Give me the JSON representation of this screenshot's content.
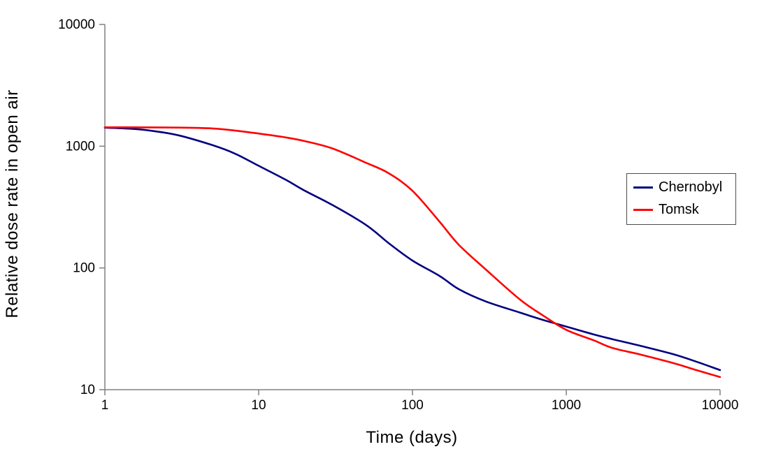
{
  "chart_data": {
    "type": "line",
    "title": "",
    "xlabel": "Time (days)",
    "ylabel": "Relative dose rate in open air",
    "x_scale": "log",
    "y_scale": "log",
    "xlim": [
      1,
      10000
    ],
    "ylim": [
      10,
      10000
    ],
    "x_ticks": [
      1,
      10,
      100,
      1000,
      10000
    ],
    "y_ticks": [
      10,
      100,
      1000,
      10000
    ],
    "grid": false,
    "legend_position": "right-inside",
    "series": [
      {
        "name": "Chernobyl",
        "color": "#000080",
        "points": [
          [
            1,
            1420
          ],
          [
            1.5,
            1390
          ],
          [
            2,
            1340
          ],
          [
            3,
            1230
          ],
          [
            5,
            1020
          ],
          [
            7,
            870
          ],
          [
            10,
            690
          ],
          [
            15,
            530
          ],
          [
            20,
            430
          ],
          [
            30,
            330
          ],
          [
            50,
            225
          ],
          [
            70,
            160
          ],
          [
            100,
            115
          ],
          [
            150,
            86
          ],
          [
            200,
            67
          ],
          [
            300,
            53
          ],
          [
            500,
            43
          ],
          [
            700,
            37.5
          ],
          [
            1000,
            33
          ],
          [
            1500,
            28.5
          ],
          [
            2000,
            26
          ],
          [
            3000,
            23
          ],
          [
            5000,
            19.5
          ],
          [
            7000,
            17
          ],
          [
            10000,
            14.5
          ]
        ]
      },
      {
        "name": "Tomsk",
        "color": "#FF0000",
        "points": [
          [
            1,
            1430
          ],
          [
            2,
            1428
          ],
          [
            3,
            1422
          ],
          [
            5,
            1400
          ],
          [
            7,
            1345
          ],
          [
            10,
            1270
          ],
          [
            15,
            1180
          ],
          [
            20,
            1100
          ],
          [
            30,
            960
          ],
          [
            50,
            730
          ],
          [
            70,
            600
          ],
          [
            100,
            430
          ],
          [
            150,
            240
          ],
          [
            200,
            155
          ],
          [
            300,
            97
          ],
          [
            500,
            55
          ],
          [
            700,
            41
          ],
          [
            1000,
            31
          ],
          [
            1500,
            25.5
          ],
          [
            2000,
            22
          ],
          [
            3000,
            19.5
          ],
          [
            5000,
            16.5
          ],
          [
            7000,
            14.5
          ],
          [
            10000,
            12.7
          ]
        ]
      }
    ]
  },
  "colors": {
    "axis": "#808080",
    "tick_text": "#000000",
    "background": "#ffffff",
    "legend_border": "#4d4d4d"
  }
}
